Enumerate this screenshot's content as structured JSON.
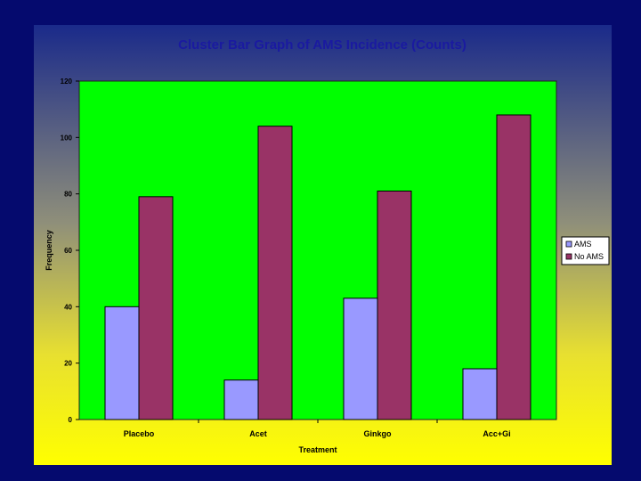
{
  "chart_data": {
    "type": "bar",
    "title": "Cluster Bar Graph of AMS Incidence (Counts)",
    "xlabel": "Treatment",
    "ylabel": "Frequency",
    "categories": [
      "Placebo",
      "Acet",
      "Ginkgo",
      "Acc+Gi"
    ],
    "series": [
      {
        "name": "AMS",
        "values": [
          40,
          14,
          43,
          18
        ],
        "color": "#9999ff"
      },
      {
        "name": "No AMS",
        "values": [
          79,
          104,
          81,
          108
        ],
        "color": "#993366"
      }
    ],
    "ylim": [
      0,
      120
    ],
    "yticks": [
      0,
      20,
      40,
      60,
      80,
      100,
      120
    ],
    "plot_background": "#00ff00",
    "grid": false,
    "legend": "right"
  }
}
